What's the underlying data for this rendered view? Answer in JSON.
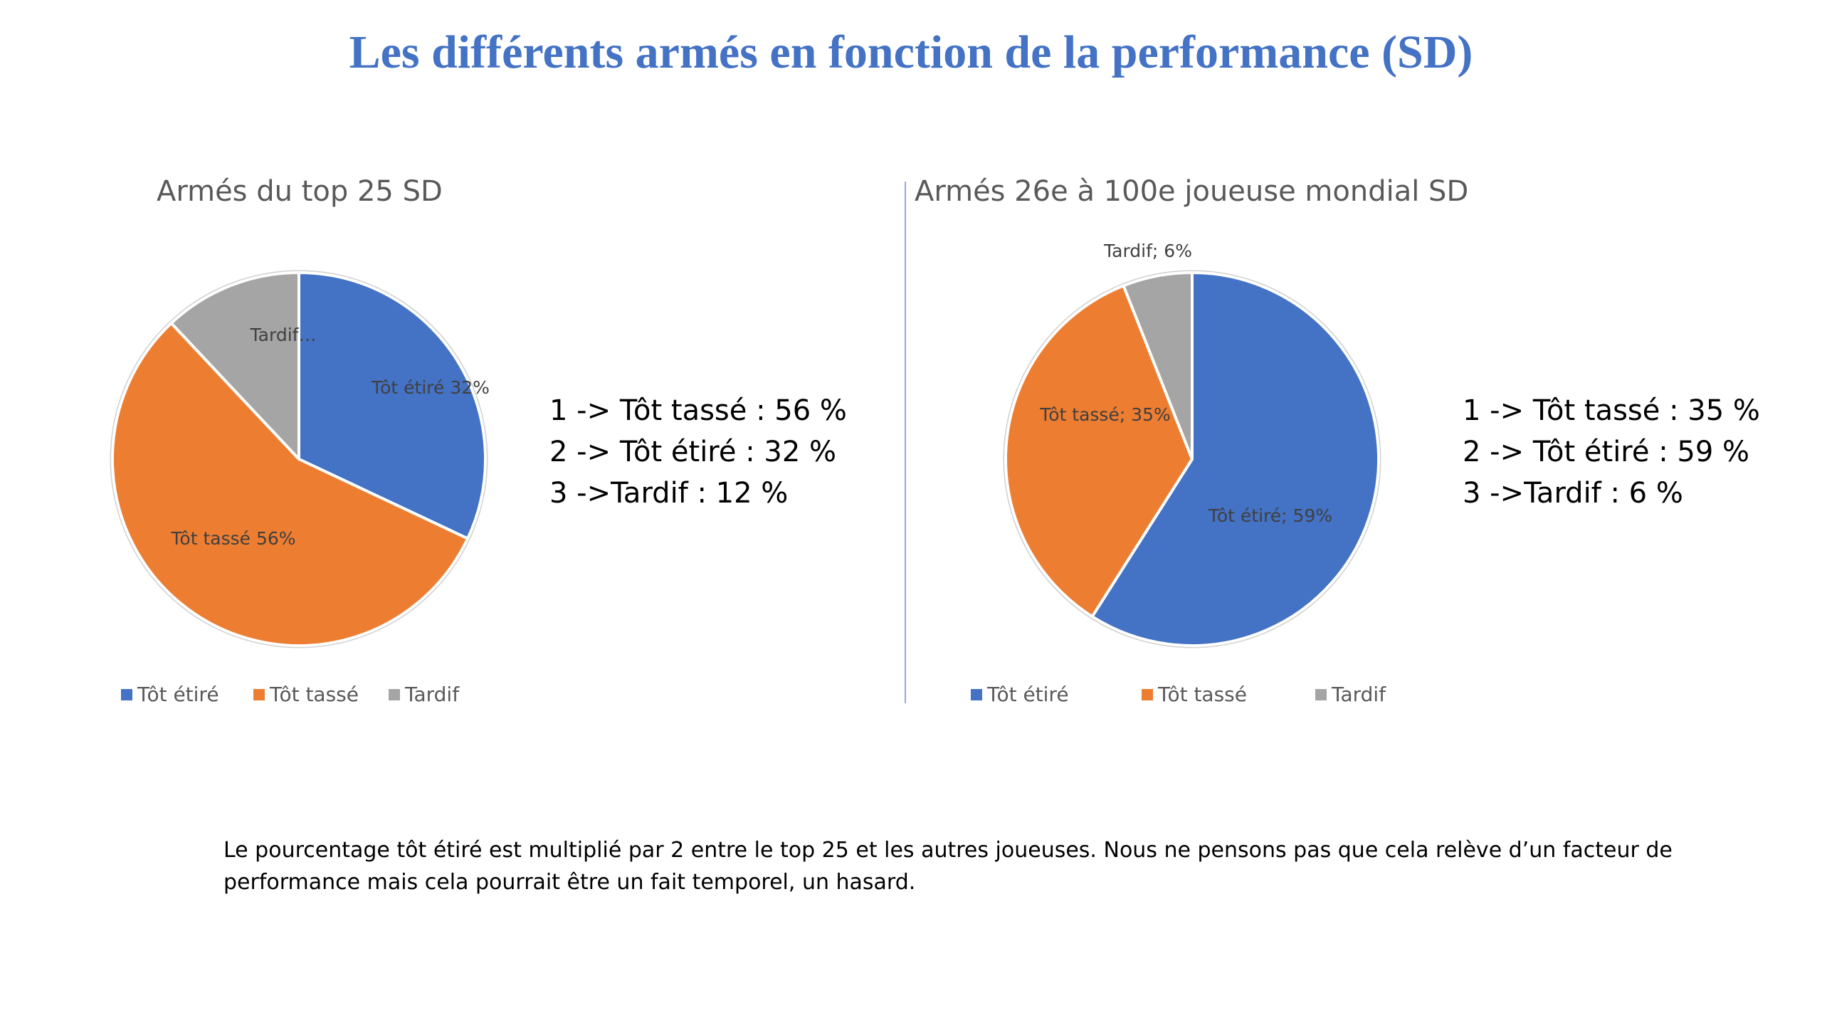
{
  "slide": {
    "title": "Les différents armés en fonction de la performance (SD)",
    "note": "Le pourcentage tôt étiré est multiplié par 2 entre le top 25 et les autres joueuses.  Nous ne pensons pas que cela relève d’un facteur de performance mais cela pourrait être un fait temporel, un hasard."
  },
  "colors": {
    "tot_etire": "#4472c4",
    "tot_tasse": "#ed7d31",
    "tardif": "#a5a5a5",
    "title": "#4472c4",
    "divider": "#8faadc"
  },
  "chart_data": [
    {
      "type": "pie",
      "title": "Armés du top 25 SD",
      "start_angle_deg": 0,
      "direction": "clockwise",
      "slices": [
        {
          "name": "Tôt étiré",
          "value": 32,
          "label": "Tôt étiré 32%",
          "color_key": "tot_etire"
        },
        {
          "name": "Tôt tassé",
          "value": 56,
          "label": "Tôt tassé 56%",
          "color_key": "tot_tasse"
        },
        {
          "name": "Tardif",
          "value": 12,
          "label": "Tardif…",
          "color_key": "tardif"
        }
      ],
      "legend": [
        "Tôt étiré",
        "Tôt tassé",
        "Tardif"
      ],
      "legend_position": "bottom"
    },
    {
      "type": "pie",
      "title": "Armés 26e à 100e joueuse mondial SD",
      "start_angle_deg": 0,
      "direction": "clockwise",
      "slices": [
        {
          "name": "Tôt étiré",
          "value": 59,
          "label": "Tôt étiré; 59%",
          "color_key": "tot_etire"
        },
        {
          "name": "Tôt tassé",
          "value": 35,
          "label": "Tôt tassé; 35%",
          "color_key": "tot_tasse"
        },
        {
          "name": "Tardif",
          "value": 6,
          "label": "Tardif; 6%",
          "color_key": "tardif"
        }
      ],
      "legend": [
        "Tôt étiré",
        "Tôt tassé",
        "Tardif"
      ],
      "legend_position": "bottom"
    }
  ],
  "stats": {
    "left": [
      "1 -> Tôt tassé : 56 %",
      "2 -> Tôt étiré : 32 %",
      "3 ->Tardif : 12 %"
    ],
    "right": [
      "1 -> Tôt tassé : 35 %",
      "2 -> Tôt étiré : 59 %",
      "3 ->Tardif : 6 %"
    ]
  }
}
